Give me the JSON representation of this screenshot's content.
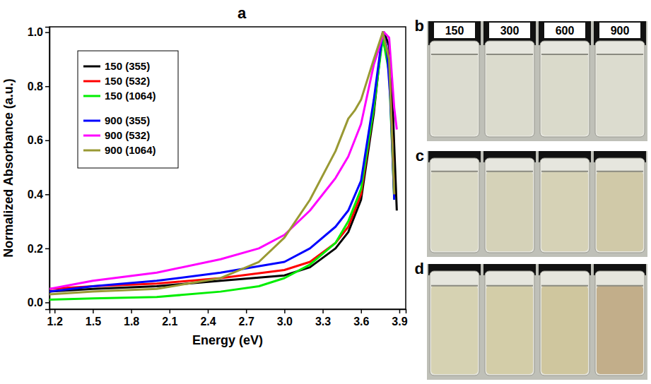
{
  "chart_data": {
    "type": "line",
    "title": "a",
    "x_label": "Energy (eV)",
    "y_label": "Normalized Absorbance (a.u.)",
    "xlim": [
      1.16,
      3.95
    ],
    "ylim": [
      -0.025,
      1.02
    ],
    "xticks": [
      1.2,
      1.5,
      1.8,
      2.1,
      2.4,
      2.7,
      {
        "value": 3,
        "label": "3.0"
      },
      3.3,
      3.6,
      3.9
    ],
    "yticks": [
      {
        "value": 0,
        "label": "0.0"
      },
      0.2,
      0.4,
      0.6,
      0.8,
      {
        "value": 1,
        "label": "1.0"
      }
    ],
    "legend": "upper left",
    "grid": false,
    "series": [
      {
        "name": "150 (355)",
        "color": "#000000",
        "x": [
          1.16,
          1.5,
          2.0,
          2.5,
          3.0,
          3.2,
          3.4,
          3.5,
          3.6,
          3.7,
          3.75,
          3.78,
          3.82,
          3.85,
          3.88
        ],
        "values": [
          0.04,
          0.05,
          0.06,
          0.08,
          0.1,
          0.13,
          0.2,
          0.26,
          0.38,
          0.7,
          0.92,
          1.0,
          0.95,
          0.7,
          0.34
        ]
      },
      {
        "name": "150 (532)",
        "color": "#ff0000",
        "x": [
          1.16,
          1.5,
          2.0,
          2.5,
          3.0,
          3.2,
          3.4,
          3.5,
          3.6,
          3.7,
          3.77,
          3.82,
          3.86
        ],
        "values": [
          0.05,
          0.06,
          0.07,
          0.09,
          0.12,
          0.15,
          0.22,
          0.28,
          0.4,
          0.72,
          1.0,
          0.9,
          0.4
        ]
      },
      {
        "name": "150 (1064)",
        "color": "#00ee00",
        "x": [
          1.16,
          1.5,
          2.0,
          2.5,
          2.8,
          3.0,
          3.2,
          3.4,
          3.5,
          3.6,
          3.7,
          3.77,
          3.82,
          3.86
        ],
        "values": [
          0.01,
          0.015,
          0.02,
          0.04,
          0.06,
          0.09,
          0.14,
          0.22,
          0.3,
          0.42,
          0.72,
          0.98,
          0.85,
          0.38
        ]
      },
      {
        "name": "900 (355)",
        "color": "#0000ff",
        "x": [
          1.16,
          1.5,
          2.0,
          2.5,
          3.0,
          3.2,
          3.4,
          3.5,
          3.6,
          3.7,
          3.77,
          3.8,
          3.83,
          3.86
        ],
        "values": [
          0.04,
          0.06,
          0.08,
          0.11,
          0.15,
          0.2,
          0.28,
          0.34,
          0.45,
          0.75,
          1.0,
          0.95,
          0.75,
          0.38
        ]
      },
      {
        "name": "900 (532)",
        "color": "#ff00ff",
        "x": [
          1.16,
          1.5,
          2.0,
          2.5,
          2.8,
          3.0,
          3.2,
          3.4,
          3.5,
          3.6,
          3.7,
          3.78,
          3.82,
          3.86,
          3.88
        ],
        "values": [
          0.05,
          0.08,
          0.11,
          0.16,
          0.2,
          0.25,
          0.34,
          0.46,
          0.54,
          0.66,
          0.88,
          1.0,
          0.98,
          0.72,
          0.64
        ]
      },
      {
        "name": "900 (1064)",
        "color": "#999933",
        "x": [
          1.16,
          1.5,
          2.0,
          2.5,
          2.8,
          3.0,
          3.2,
          3.4,
          3.5,
          3.55,
          3.6,
          3.7,
          3.77,
          3.82,
          3.86
        ],
        "values": [
          0.03,
          0.04,
          0.05,
          0.09,
          0.15,
          0.24,
          0.38,
          0.56,
          0.68,
          0.71,
          0.75,
          0.9,
          1.0,
          0.9,
          0.4
        ]
      }
    ]
  },
  "photos": {
    "panels": [
      {
        "letter": "b",
        "labels": [
          "150",
          "300",
          "600",
          "900"
        ],
        "liquid_colors": [
          "#dcdcd0",
          "#dbdbcd",
          "#dadacb",
          "#dcdccf"
        ]
      },
      {
        "letter": "c",
        "liquid_colors": [
          "#d9d8c4",
          "#d5d2b8",
          "#d6d2b6",
          "#d0c9a8"
        ]
      },
      {
        "letter": "d",
        "liquid_colors": [
          "#d6d2b2",
          "#d3cda8",
          "#cfc69e",
          "#c2ae8a"
        ]
      }
    ]
  }
}
